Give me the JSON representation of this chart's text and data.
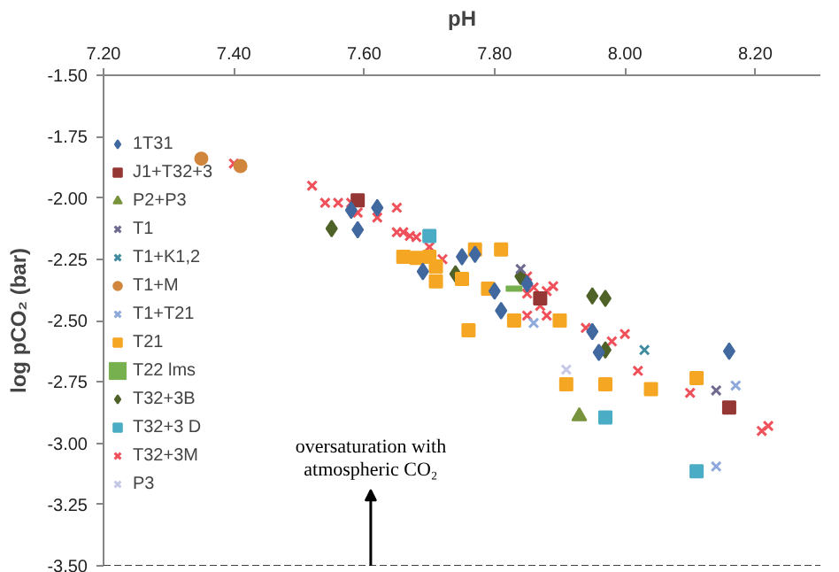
{
  "chart_data": {
    "type": "scatter",
    "xlabel": "pH",
    "ylabel": "log pCO₂ (bar)",
    "xlim": [
      7.2,
      8.3
    ],
    "ylim": [
      -3.5,
      -1.5
    ],
    "xticks": [
      {
        "value": 7.2,
        "label": "7.20"
      },
      {
        "value": 7.4,
        "label": "7.40"
      },
      {
        "value": 7.6,
        "label": "7.60"
      },
      {
        "value": 7.8,
        "label": "7.80"
      },
      {
        "value": 8.0,
        "label": "8.00"
      },
      {
        "value": 8.2,
        "label": "8.20"
      }
    ],
    "yticks": [
      {
        "value": -1.5,
        "label": "-1.50"
      },
      {
        "value": -1.75,
        "label": "-1.75"
      },
      {
        "value": -2.0,
        "label": "-2.00"
      },
      {
        "value": -2.25,
        "label": "-2.25"
      },
      {
        "value": -2.5,
        "label": "-2.50"
      },
      {
        "value": -2.75,
        "label": "-2.75"
      },
      {
        "value": -3.0,
        "label": "-3.00"
      },
      {
        "value": -3.25,
        "label": "-3.25"
      },
      {
        "value": -3.5,
        "label": "-3.50"
      }
    ],
    "grid": false,
    "legend": "left",
    "ref_lines": [
      {
        "axis": "y",
        "value": -3.5,
        "color": "#404040",
        "line_style": "dashed"
      }
    ],
    "annotations": [
      {
        "text": "oversaturation with\natmospheric CO₂",
        "x": 7.61,
        "y": -3.5
      }
    ],
    "series": [
      {
        "name": "1T31",
        "color": "#41689f",
        "marker": "diamond",
        "x": [
          7.58,
          7.62,
          7.59,
          7.69,
          7.75,
          7.77,
          7.8,
          7.81,
          7.85,
          7.95,
          7.96,
          8.16
        ],
        "values": [
          -2.05,
          -2.04,
          -2.13,
          -2.3,
          -2.24,
          -2.23,
          -2.38,
          -2.46,
          -2.35,
          -2.545,
          -2.63,
          -2.625
        ]
      },
      {
        "name": "J1+T32+3",
        "color": "#953735",
        "marker": "square",
        "x": [
          7.59,
          7.87,
          8.16
        ],
        "values": [
          -2.01,
          -2.41,
          -2.855
        ]
      },
      {
        "name": "P2+P3",
        "color": "#77933c",
        "marker": "triangle",
        "x": [
          7.93
        ],
        "values": [
          -2.89
        ]
      },
      {
        "name": "T1",
        "color": "#6e6a8f",
        "marker": "cross",
        "x": [
          7.84,
          8.14
        ],
        "values": [
          -2.29,
          -2.785
        ]
      },
      {
        "name": "T1+K1,2",
        "color": "#3f8a9e",
        "marker": "cross",
        "x": [
          8.03
        ],
        "values": [
          -2.62
        ]
      },
      {
        "name": "T1+M",
        "color": "#d0863c",
        "marker": "circle",
        "x": [
          7.35,
          7.41
        ],
        "values": [
          -1.84,
          -1.87
        ]
      },
      {
        "name": "T1+T21",
        "color": "#8ea9db",
        "marker": "cross",
        "x": [
          7.86,
          8.17,
          8.14
        ],
        "values": [
          -2.51,
          -2.765,
          -3.095
        ]
      },
      {
        "name": "T21",
        "color": "#f5a623",
        "marker": "square",
        "x": [
          7.66,
          7.68,
          7.7,
          7.71,
          7.71,
          7.75,
          7.77,
          7.81,
          7.79,
          7.76,
          7.83,
          7.9,
          7.91,
          7.97,
          8.04,
          8.11
        ],
        "values": [
          -2.24,
          -2.245,
          -2.24,
          -2.28,
          -2.34,
          -2.33,
          -2.21,
          -2.21,
          -2.37,
          -2.54,
          -2.5,
          -2.5,
          -2.76,
          -2.76,
          -2.78,
          -2.735
        ]
      },
      {
        "name": "T22 lms",
        "color": "#77b04e",
        "x": [
          7.83
        ],
        "values": [
          -2.37
        ]
      },
      {
        "name": "T32+3B",
        "color": "#4f6228",
        "marker": "diamond",
        "x": [
          7.55,
          7.74,
          7.84,
          7.95,
          7.97,
          7.97
        ],
        "values": [
          -2.125,
          -2.31,
          -2.32,
          -2.4,
          -2.41,
          -2.62
        ]
      },
      {
        "name": "T32+3 D",
        "color": "#4bacc6",
        "marker": "square",
        "x": [
          7.7,
          7.97,
          8.11
        ],
        "values": [
          -2.155,
          -2.895,
          -3.115
        ]
      },
      {
        "name": "T32+3M",
        "color": "#f0505a",
        "marker": "cross",
        "x": [
          7.4,
          7.52,
          7.54,
          7.56,
          7.58,
          7.59,
          7.62,
          7.65,
          7.65,
          7.66,
          7.67,
          7.68,
          7.7,
          7.72,
          7.85,
          7.85,
          7.86,
          7.88,
          7.89,
          7.87,
          7.88,
          7.85,
          7.94,
          7.98,
          8.0,
          8.02,
          8.1,
          8.21,
          8.22
        ],
        "values": [
          -1.86,
          -1.95,
          -2.02,
          -2.02,
          -2.02,
          -2.06,
          -2.08,
          -2.04,
          -2.14,
          -2.14,
          -2.155,
          -2.16,
          -2.2,
          -2.25,
          -2.32,
          -2.39,
          -2.365,
          -2.38,
          -2.36,
          -2.44,
          -2.48,
          -2.48,
          -2.53,
          -2.585,
          -2.555,
          -2.705,
          -2.795,
          -2.95,
          -2.93
        ]
      },
      {
        "name": "P3",
        "color": "#c5c8e6",
        "marker": "cross",
        "x": [
          7.91
        ],
        "values": [
          -2.7
        ]
      }
    ]
  }
}
